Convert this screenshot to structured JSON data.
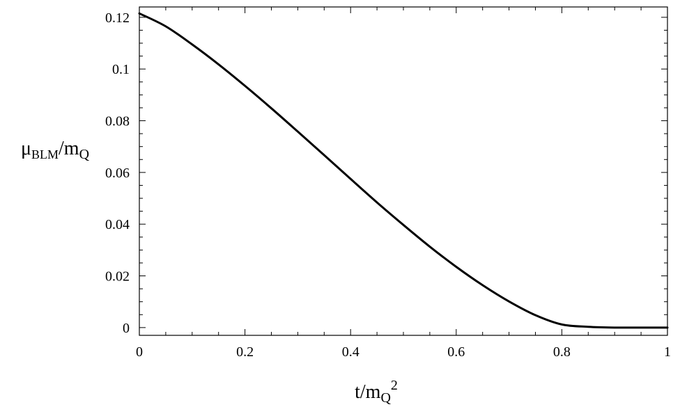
{
  "chart_data": {
    "type": "line",
    "title": "",
    "xlabel": {
      "base": "t/m",
      "sub": "Q",
      "sup": "2"
    },
    "ylabel": {
      "pre": "μ",
      "sub1": "BLM",
      "mid": "/m",
      "sub2": "Q"
    },
    "xlim": [
      0,
      1
    ],
    "ylim": [
      -0.003,
      0.124
    ],
    "x_ticks": [
      0,
      0.2,
      0.4,
      0.6,
      0.8,
      1
    ],
    "x_tick_labels": [
      "0",
      "0.2",
      "0.4",
      "0.6",
      "0.8",
      "1"
    ],
    "y_ticks": [
      0,
      0.02,
      0.04,
      0.06,
      0.08,
      0.1,
      0.12
    ],
    "y_tick_labels": [
      "0",
      "0.02",
      "0.04",
      "0.06",
      "0.08",
      "0.1",
      "0.12"
    ],
    "x_minor_step": 0.05,
    "y_minor_step": 0.005,
    "grid": false,
    "series": [
      {
        "color": "#000000",
        "x": [
          0.0,
          0.05,
          0.1,
          0.15,
          0.2,
          0.25,
          0.3,
          0.35,
          0.4,
          0.45,
          0.5,
          0.55,
          0.6,
          0.65,
          0.7,
          0.75,
          0.8,
          0.85,
          0.9,
          0.95,
          1.0
        ],
        "y": [
          0.1215,
          0.1165,
          0.1095,
          0.1018,
          0.0935,
          0.0848,
          0.0758,
          0.0667,
          0.0575,
          0.0484,
          0.0397,
          0.0313,
          0.0235,
          0.0164,
          0.0101,
          0.0048,
          0.0012,
          0.0003,
          0.0,
          0.0,
          0.0
        ]
      }
    ]
  }
}
